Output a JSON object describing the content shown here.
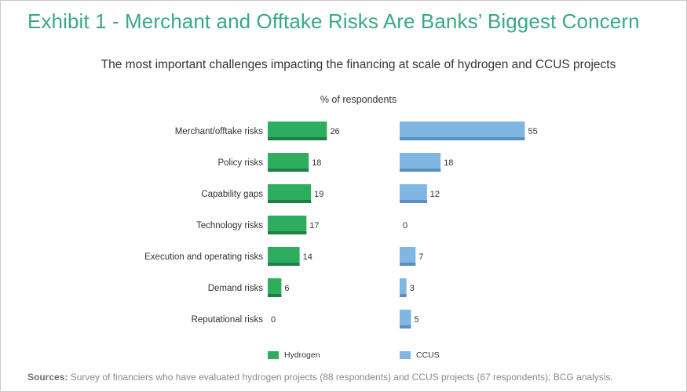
{
  "title": "Exhibit 1 - Merchant and Offtake Risks Are Banks’ Biggest Concern",
  "subtitle": "The most important challenges impacting the financing at scale of hydrogen and CCUS projects",
  "unit_label": "% of respondents",
  "sources_label": "Sources:",
  "sources_text": "Survey of financiers who have evaluated hydrogen projects (88 respondents) and CCUS projects (67 respondents); BCG analysis.",
  "legend": {
    "hydrogen": "Hydrogen",
    "ccus": "CCUS"
  },
  "colors": {
    "hydrogen": "#2dae5f",
    "hydrogen_dark": "#1d7f45",
    "ccus": "#7fb6e2",
    "ccus_dark": "#5a8fbf"
  },
  "chart_data": {
    "type": "bar",
    "orientation": "horizontal",
    "categories": [
      "Merchant/offtake risks",
      "Policy risks",
      "Capability gaps",
      "Technology risks",
      "Execution and operating risks",
      "Demand risks",
      "Reputational risks"
    ],
    "series": [
      {
        "name": "Hydrogen",
        "values": [
          26,
          18,
          19,
          17,
          14,
          6,
          0
        ]
      },
      {
        "name": "CCUS",
        "values": [
          55,
          18,
          12,
          0,
          7,
          3,
          5
        ]
      }
    ],
    "legend_position": "bottom"
  }
}
